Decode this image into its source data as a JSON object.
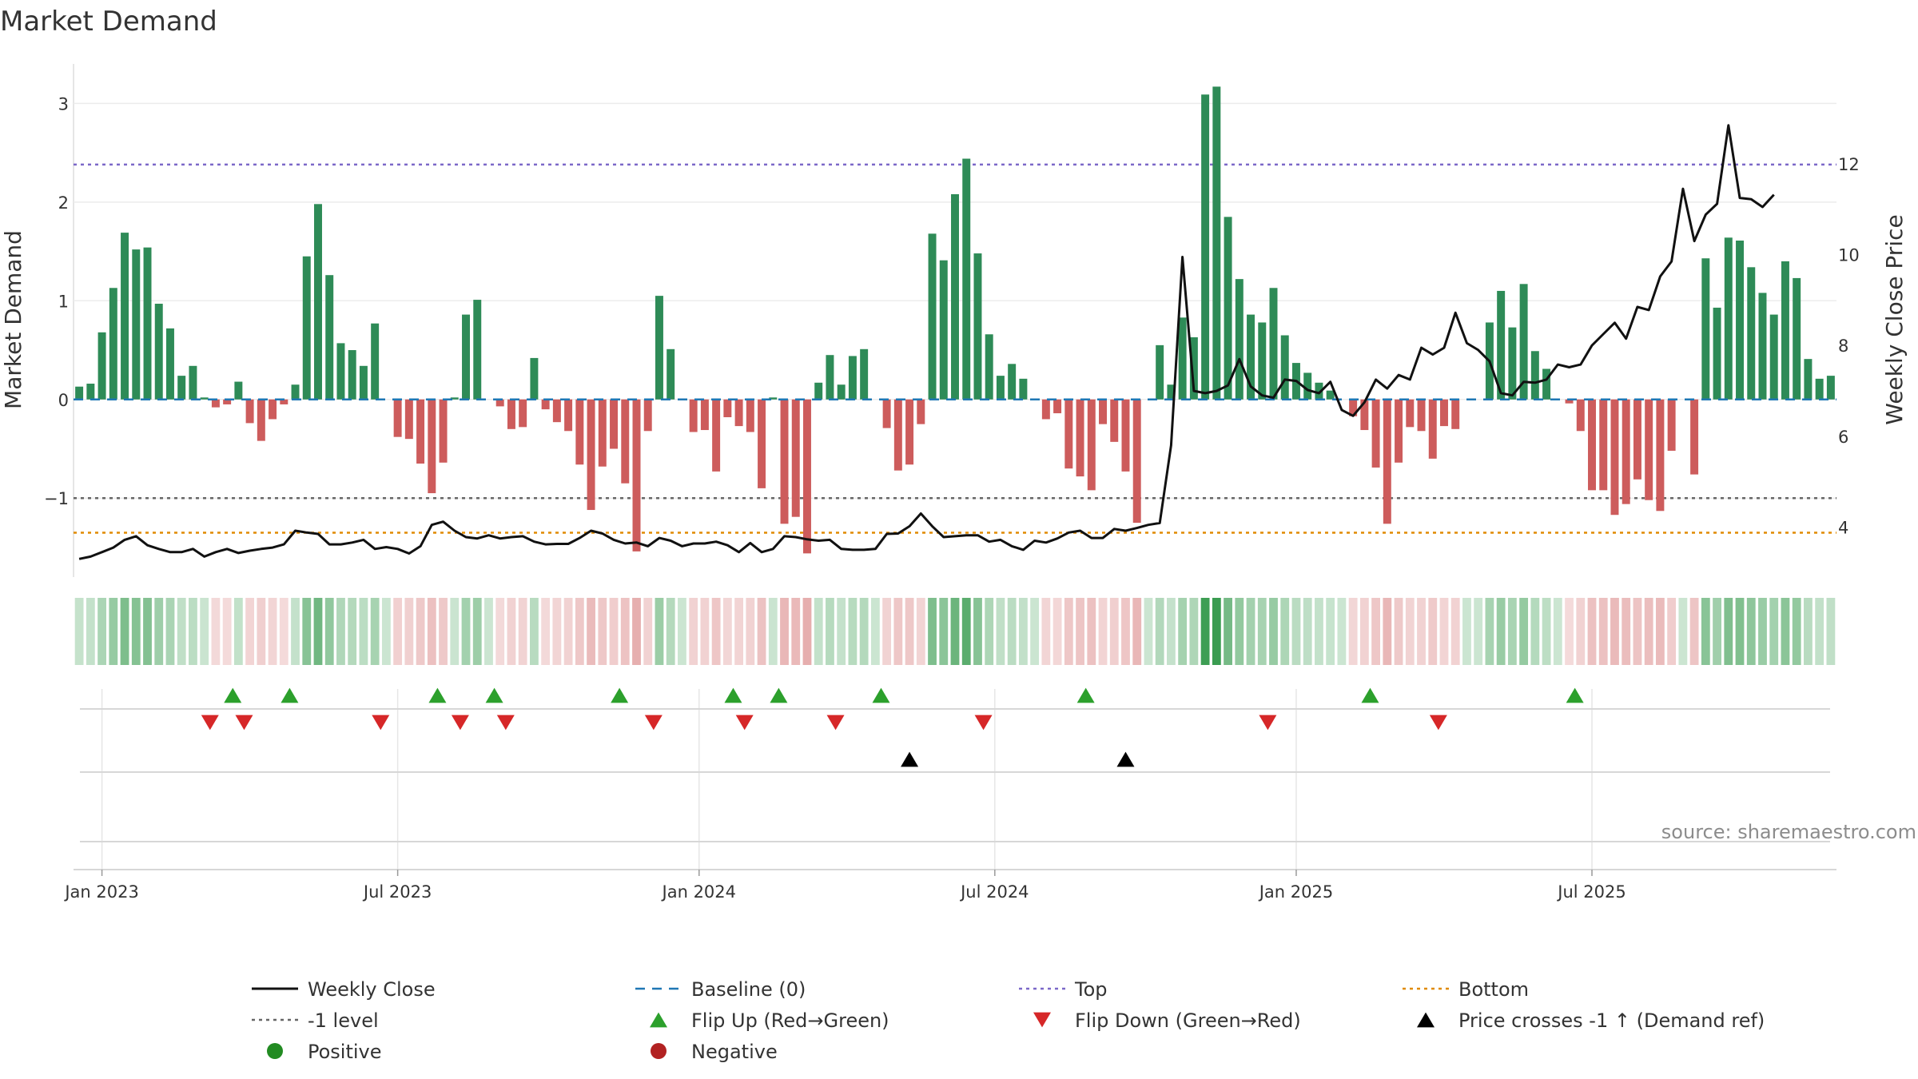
{
  "chart_data": {
    "type": "bar+line",
    "title": "Market Demand",
    "ylabel_left": "Market Demand",
    "ylabel_right": "Weekly Close Price",
    "source": "source: sharemaestro.com",
    "y_left_range": [
      -1.8,
      3.4
    ],
    "y_left_ticks": [
      {
        "v": -1,
        "label": "−1"
      },
      {
        "v": 0,
        "label": "0"
      },
      {
        "v": 1,
        "label": "1"
      },
      {
        "v": 2,
        "label": "2"
      },
      {
        "v": 3,
        "label": "3"
      }
    ],
    "y_right_range": [
      2.9,
      14.2
    ],
    "y_right_ticks": [
      {
        "v": 4,
        "label": "4"
      },
      {
        "v": 6,
        "label": "6"
      },
      {
        "v": 8,
        "label": "8"
      },
      {
        "v": 10,
        "label": "10"
      },
      {
        "v": 12,
        "label": "12"
      }
    ],
    "x_ticks": [
      {
        "week": 2,
        "label": "Jan 2023"
      },
      {
        "week": 28,
        "label": "Jul 2023"
      },
      {
        "week": 54.5,
        "label": "Jan 2024"
      },
      {
        "week": 80.5,
        "label": "Jul 2024"
      },
      {
        "week": 107,
        "label": "Jan 2025"
      },
      {
        "week": 133,
        "label": "Jul 2025"
      }
    ],
    "reference_lines": {
      "top": 2.38,
      "bottom": -1.35,
      "minus_one": -1.0,
      "baseline": 0
    },
    "demand": [
      0.13,
      0.16,
      0.68,
      1.13,
      1.69,
      1.52,
      1.54,
      0.97,
      0.72,
      0.24,
      0.34,
      0.02,
      -0.08,
      -0.05,
      0.18,
      -0.24,
      -0.42,
      -0.2,
      -0.05,
      0.15,
      1.45,
      1.98,
      1.26,
      0.57,
      0.5,
      0.34,
      0.77,
      0.0,
      -0.38,
      -0.4,
      -0.65,
      -0.95,
      -0.64,
      0.02,
      0.86,
      1.01,
      0.0,
      -0.07,
      -0.3,
      -0.28,
      0.42,
      -0.1,
      -0.23,
      -0.32,
      -0.66,
      -1.12,
      -0.68,
      -0.5,
      -0.85,
      -1.54,
      -0.32,
      1.05,
      0.51,
      0.0,
      -0.33,
      -0.31,
      -0.73,
      -0.18,
      -0.27,
      -0.33,
      -0.9,
      0.02,
      -1.26,
      -1.19,
      -1.56,
      0.17,
      0.45,
      0.15,
      0.44,
      0.51,
      0.0,
      -0.29,
      -0.72,
      -0.66,
      -0.25,
      1.68,
      1.41,
      2.08,
      2.44,
      1.48,
      0.66,
      0.24,
      0.36,
      0.21,
      0.0,
      -0.2,
      -0.14,
      -0.7,
      -0.78,
      -0.92,
      -0.25,
      -0.43,
      -0.73,
      -1.25,
      0.0,
      0.55,
      0.15,
      0.83,
      0.63,
      3.09,
      3.17,
      1.85,
      1.22,
      0.86,
      0.78,
      1.13,
      0.65,
      0.37,
      0.27,
      0.17,
      0.09,
      0.0,
      -0.17,
      -0.31,
      -0.69,
      -1.26,
      -0.64,
      -0.28,
      -0.32,
      -0.6,
      -0.27,
      -0.3,
      0.0,
      0.0,
      0.78,
      1.1,
      0.73,
      1.17,
      0.49,
      0.31,
      0.0,
      -0.04,
      -0.32,
      -0.92,
      -0.92,
      -1.17,
      -1.06,
      -0.81,
      -1.02,
      -1.13,
      -0.52,
      0.0,
      -0.76,
      1.43,
      0.93,
      1.64,
      1.61,
      1.34,
      1.08,
      0.86,
      1.4,
      1.23,
      0.41,
      0.21,
      0.24
    ],
    "close": [
      3.3,
      3.35,
      3.45,
      3.55,
      3.72,
      3.8,
      3.6,
      3.52,
      3.45,
      3.45,
      3.52,
      3.35,
      3.45,
      3.52,
      3.43,
      3.48,
      3.52,
      3.55,
      3.62,
      3.92,
      3.88,
      3.85,
      3.62,
      3.62,
      3.66,
      3.72,
      3.52,
      3.56,
      3.52,
      3.42,
      3.58,
      4.05,
      4.12,
      3.92,
      3.78,
      3.75,
      3.82,
      3.75,
      3.78,
      3.8,
      3.68,
      3.62,
      3.63,
      3.63,
      3.76,
      3.92,
      3.86,
      3.72,
      3.64,
      3.66,
      3.58,
      3.76,
      3.7,
      3.58,
      3.64,
      3.64,
      3.68,
      3.6,
      3.45,
      3.65,
      3.45,
      3.52,
      3.8,
      3.78,
      3.73,
      3.7,
      3.72,
      3.52,
      3.5,
      3.5,
      3.52,
      3.85,
      3.86,
      4.02,
      4.3,
      4.02,
      3.78,
      3.8,
      3.82,
      3.82,
      3.68,
      3.72,
      3.58,
      3.5,
      3.7,
      3.66,
      3.75,
      3.88,
      3.92,
      3.76,
      3.76,
      3.96,
      3.92,
      3.98,
      4.05,
      4.09,
      5.8,
      9.95,
      7.0,
      6.95,
      7.0,
      7.12,
      7.7,
      7.1,
      6.9,
      6.85,
      7.25,
      7.22,
      7.02,
      6.95,
      7.2,
      6.58,
      6.45,
      6.75,
      7.25,
      7.05,
      7.35,
      7.25,
      7.95,
      7.8,
      7.95,
      8.72,
      8.05,
      7.9,
      7.65,
      6.95,
      6.9,
      7.2,
      7.18,
      7.25,
      7.58,
      7.52,
      7.58,
      8.0,
      8.25,
      8.5,
      8.15,
      8.85,
      8.78,
      9.52,
      9.85,
      11.45,
      10.3,
      10.88,
      11.12,
      12.85,
      11.25,
      11.22,
      11.05,
      11.32
    ],
    "strip_values": [
      0.13,
      0.16,
      0.68,
      1.13,
      1.69,
      1.52,
      1.54,
      0.97,
      0.72,
      0.24,
      0.34,
      0.02,
      -0.08,
      -0.05,
      0.18,
      -0.24,
      -0.42,
      -0.2,
      -0.05,
      0.15,
      1.45,
      1.98,
      1.26,
      0.57,
      0.5,
      0.34,
      0.77,
      0.0,
      -0.38,
      -0.4,
      -0.65,
      -0.95,
      -0.64,
      0.02,
      0.86,
      1.01,
      0.0,
      -0.07,
      -0.3,
      -0.28,
      0.42,
      -0.1,
      -0.23,
      -0.32,
      -0.66,
      -1.12,
      -0.68,
      -0.5,
      -0.85,
      -1.54,
      -0.32,
      1.05,
      0.51,
      0.0,
      -0.33,
      -0.31,
      -0.73,
      -0.18,
      -0.27,
      -0.33,
      -0.9,
      0.02,
      -1.26,
      -1.19,
      -1.56,
      0.17,
      0.45,
      0.15,
      0.44,
      0.51,
      0.0,
      -0.29,
      -0.72,
      -0.66,
      -0.25,
      1.68,
      1.41,
      2.08,
      2.44,
      1.48,
      0.66,
      0.24,
      0.36,
      0.21,
      0.0,
      -0.2,
      -0.14,
      -0.7,
      -0.78,
      -0.92,
      -0.25,
      -0.43,
      -0.73,
      -1.25,
      0.0,
      0.55,
      0.15,
      0.83,
      0.63,
      3.09,
      3.17,
      1.85,
      1.22,
      0.86,
      0.78,
      1.13,
      0.65,
      0.37,
      0.27,
      0.17,
      0.09,
      0.0,
      -0.17,
      -0.31,
      -0.69,
      -1.26,
      -0.64,
      -0.28,
      -0.32,
      -0.6,
      -0.27,
      -0.3,
      0.0,
      0.0,
      0.78,
      1.1,
      0.73,
      1.17,
      0.49,
      0.31,
      0.0,
      -0.04,
      -0.32,
      -0.92,
      -0.92,
      -1.17,
      -1.06,
      -0.81,
      -1.02,
      -1.13,
      -0.52,
      0.0,
      -0.76,
      1.43,
      0.93,
      1.64,
      1.61,
      1.34,
      1.08,
      0.86,
      1.4,
      1.23,
      0.41,
      0.21,
      0.24
    ],
    "flip_up_weeks": [
      13.5,
      18.5,
      31.5,
      36.5,
      47.5,
      57.5,
      61.5,
      70.5,
      88.5,
      113.5,
      131.5
    ],
    "flip_down_weeks": [
      11.5,
      14.5,
      26.5,
      33.5,
      37.5,
      50.5,
      58.5,
      66.5,
      79.5,
      104.5,
      119.5
    ],
    "price_cross_weeks": [
      73,
      92
    ],
    "colors": {
      "positive_bar": "#2e8b57",
      "negative_bar": "#cd5c5c",
      "close_line": "#111111",
      "baseline": "#1f77b4",
      "top": "#7b68c8",
      "bottom": "#e08a00",
      "minus_one": "#666666",
      "flip_up": "#2ca02c",
      "flip_down": "#d62728",
      "price_cross": "#000000",
      "positive_dot": "#228b22",
      "negative_dot": "#b22222"
    },
    "legend": [
      {
        "label": "Weekly Close",
        "kind": "line",
        "color": "#111111"
      },
      {
        "label": "Baseline (0)",
        "kind": "dashed",
        "color": "#1f77b4"
      },
      {
        "label": "Top",
        "kind": "dotted",
        "color": "#7b68c8"
      },
      {
        "label": "Bottom",
        "kind": "dotted",
        "color": "#e08a00"
      },
      {
        "label": "-1 level",
        "kind": "dotted",
        "color": "#666666"
      },
      {
        "label": "Flip Up (Red→Green)",
        "kind": "tri-up",
        "color": "#2ca02c"
      },
      {
        "label": "Flip Down (Green→Red)",
        "kind": "tri-down",
        "color": "#d62728"
      },
      {
        "label": "Price crosses -1 ↑ (Demand ref)",
        "kind": "tri-up",
        "color": "#000000"
      },
      {
        "label": "Positive",
        "kind": "dot",
        "color": "#228b22"
      },
      {
        "label": "Negative",
        "kind": "dot",
        "color": "#b22222"
      }
    ]
  }
}
